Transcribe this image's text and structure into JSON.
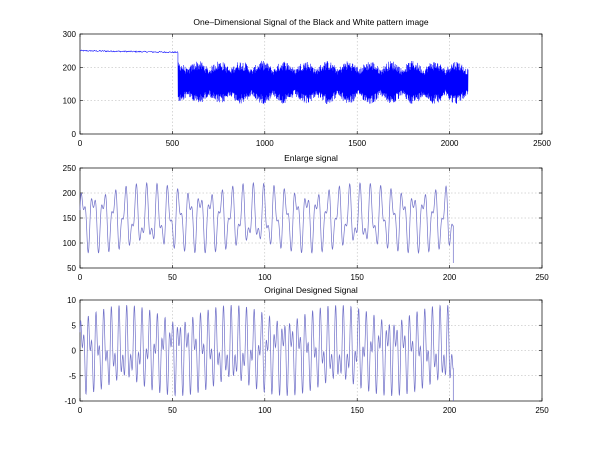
{
  "chart_data": [
    {
      "type": "line",
      "title": "One–Dimensional Signal of the Black and White pattern image",
      "xlabel": "",
      "ylabel": "",
      "xlim": [
        0,
        2500
      ],
      "ylim": [
        0,
        300
      ],
      "xticks": [
        0,
        500,
        1000,
        1500,
        2000,
        2500
      ],
      "yticks": [
        0,
        100,
        200,
        300
      ],
      "xtick_labels": [
        "0",
        "500",
        "1000",
        "1500",
        "2000",
        "2500"
      ],
      "ytick_labels": [
        "0",
        "100",
        "200",
        "300"
      ],
      "grid": true,
      "color": "#0000ff",
      "series": [
        {
          "segments": [
            {
              "x_range": [
                0,
                530
              ],
              "level": 250,
              "end_level": 245,
              "noise": 2
            },
            {
              "x_range": [
                530,
                2100
              ],
              "center": 155,
              "amplitude": 65,
              "min": 70,
              "max": 225
            }
          ]
        }
      ]
    },
    {
      "type": "line",
      "title": "Enlarge signal",
      "xlabel": "",
      "ylabel": "",
      "xlim": [
        0,
        250
      ],
      "ylim": [
        50,
        250
      ],
      "xticks": [
        0,
        50,
        100,
        150,
        200,
        250
      ],
      "yticks": [
        50,
        100,
        150,
        200,
        250
      ],
      "xtick_labels": [
        "0",
        "50",
        "100",
        "150",
        "200",
        "250"
      ],
      "ytick_labels": [
        "50",
        "100",
        "150",
        "200",
        "250"
      ],
      "grid": true,
      "color": "#7070c8",
      "series": [
        {
          "x_range": [
            0,
            202
          ],
          "center": 150,
          "amplitude": 70,
          "min": 60,
          "max": 228,
          "peak_count": 35
        }
      ]
    },
    {
      "type": "line",
      "title": "Original Designed Signal",
      "xlabel": "",
      "ylabel": "",
      "xlim": [
        0,
        250
      ],
      "ylim": [
        -10,
        10
      ],
      "xticks": [
        0,
        50,
        100,
        150,
        200,
        250
      ],
      "yticks": [
        -10,
        -5,
        0,
        5,
        10
      ],
      "xtick_labels": [
        "0",
        "50",
        "100",
        "150",
        "200",
        "250"
      ],
      "ytick_labels": [
        "-10",
        "-5",
        "0",
        "5",
        "10"
      ],
      "grid": true,
      "color": "#7070c8",
      "series": [
        {
          "x_range": [
            0,
            202
          ],
          "center": 0,
          "amplitude": 9,
          "min": -10,
          "max": 9.5,
          "peak_count": 50
        }
      ]
    }
  ]
}
